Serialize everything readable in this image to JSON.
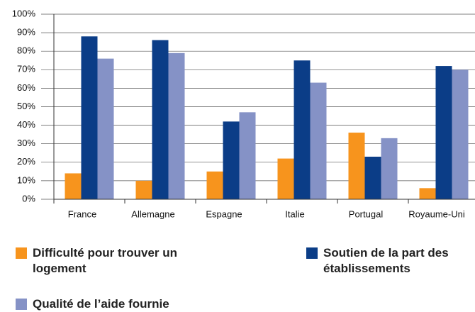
{
  "chart_data": {
    "type": "bar",
    "categories": [
      "France",
      "Allemagne",
      "Espagne",
      "Italie",
      "Portugal",
      "Royaume-Uni"
    ],
    "series": [
      {
        "name": "Difficulté pour trouver un logement",
        "color": "#f7941d",
        "values": [
          14,
          10,
          15,
          22,
          36,
          6
        ]
      },
      {
        "name": "Soutien de la part des établissements",
        "color": "#0b3d87",
        "values": [
          88,
          86,
          42,
          75,
          23,
          72
        ]
      },
      {
        "name": "Qualité de l’aide fournie",
        "color": "#8592c6",
        "values": [
          76,
          79,
          47,
          63,
          33,
          70
        ]
      }
    ],
    "ylim": [
      0,
      100
    ],
    "yticks": [
      {
        "value": 0,
        "label": "0%"
      },
      {
        "value": 10,
        "label": "10%"
      },
      {
        "value": 20,
        "label": "20%"
      },
      {
        "value": 30,
        "label": "30%"
      },
      {
        "value": 40,
        "label": "40%"
      },
      {
        "value": 50,
        "label": "50%"
      },
      {
        "value": 60,
        "label": "60%"
      },
      {
        "value": 70,
        "label": "70%"
      },
      {
        "value": 80,
        "label": "80%"
      },
      {
        "value": 90,
        "label": "90%"
      },
      {
        "value": 100,
        "label": "100%"
      }
    ],
    "grid": true
  }
}
